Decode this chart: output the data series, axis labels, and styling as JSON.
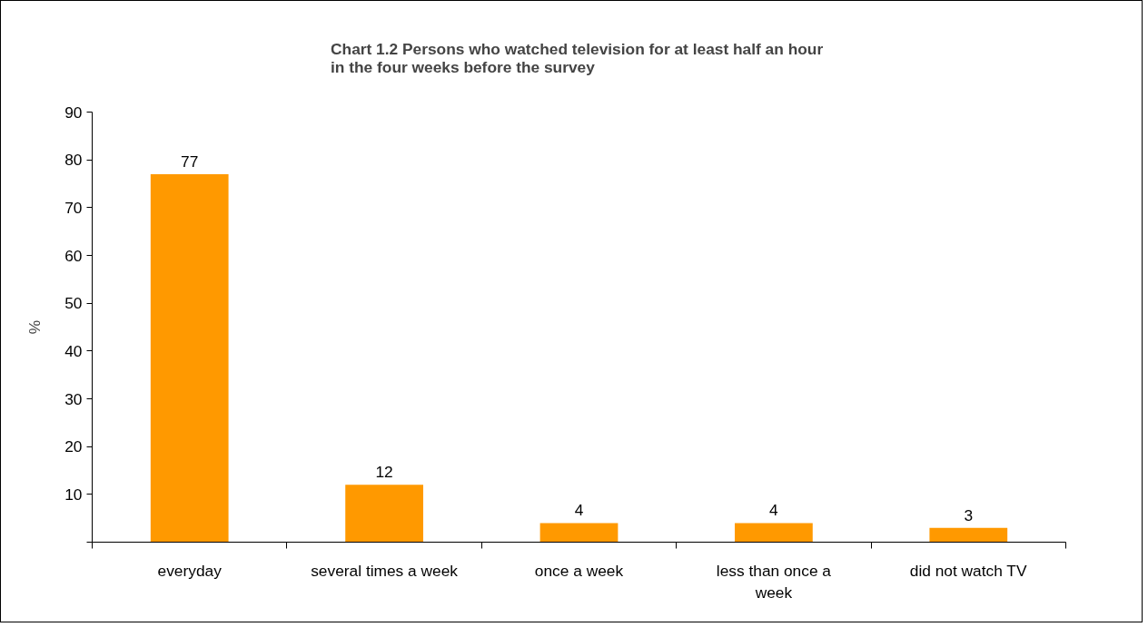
{
  "chart_data": {
    "type": "bar",
    "title": "Chart 1.2  Persons who watched television for at least half an hour in the four weeks before the survey",
    "ylabel": "%",
    "categories": [
      "everyday",
      "several times a week",
      "once a week",
      "less than once a week",
      "did not watch TV"
    ],
    "values": [
      77,
      12,
      4,
      4,
      3
    ],
    "color": "#ff9900",
    "ylim": [
      0,
      90
    ],
    "yticks": [
      {
        "value": 0,
        "label": null
      },
      10,
      20,
      30,
      40,
      50,
      60,
      70,
      80,
      90
    ],
    "grid": false,
    "data_labels": true
  }
}
